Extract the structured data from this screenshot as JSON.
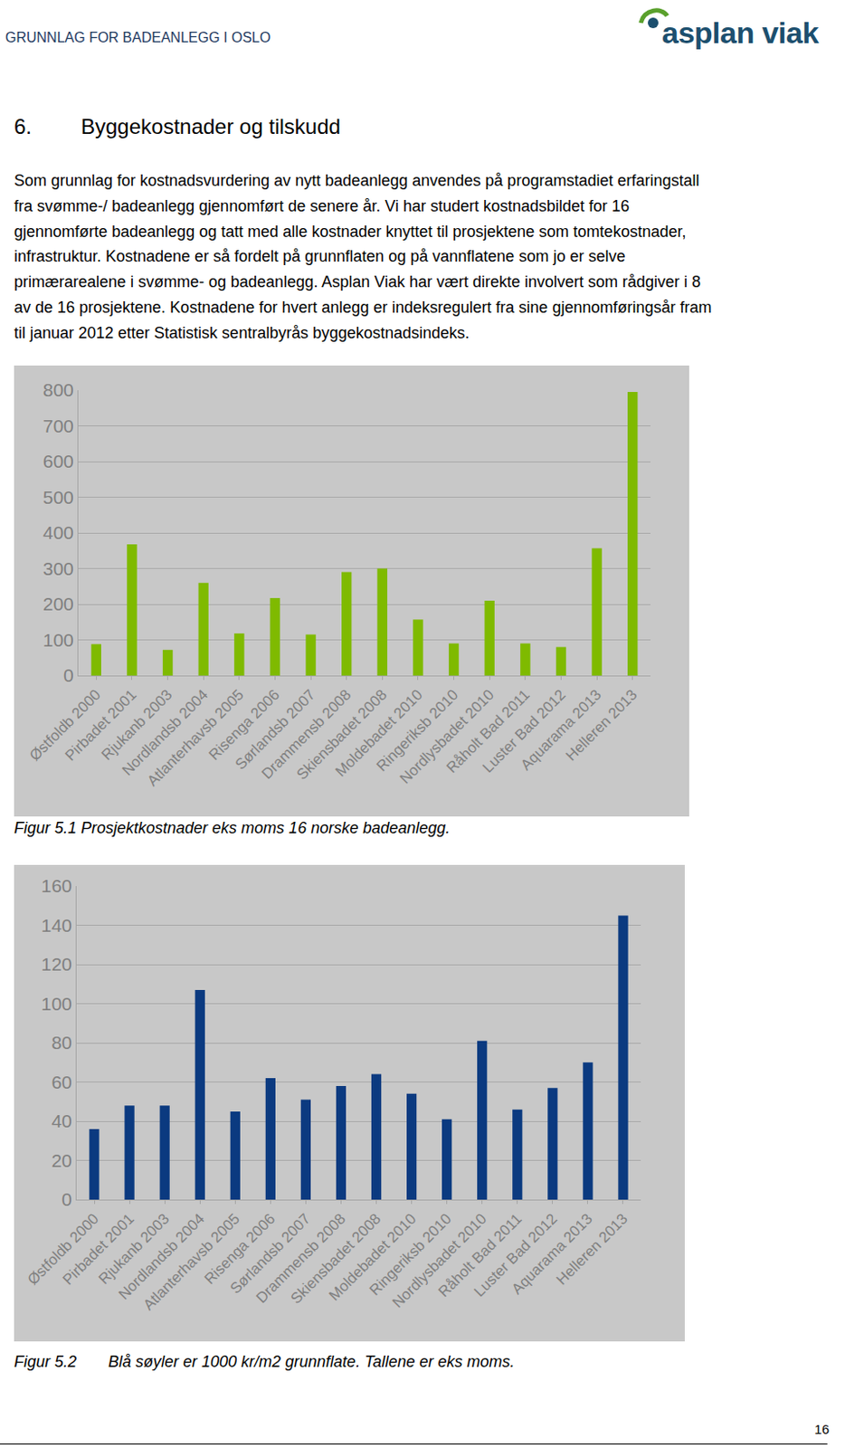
{
  "header": {
    "title": "GRUNNLAG FOR BADEANLEGG I OSLO",
    "logo": "asplan viak"
  },
  "heading": {
    "number": "6.",
    "text": "Byggekostnader og tilskudd"
  },
  "paragraph": [
    "Som grunnlag for kostnadsvurdering av nytt badeanlegg anvendes på programstadiet erfaringstall",
    "fra svømme-/ badeanlegg gjennomført de senere år. Vi har studert kostnadsbildet for 16",
    "gjennomførte badeanlegg og tatt med alle kostnader knyttet til prosjektene som tomtekostnader,",
    "infrastruktur. Kostnadene er så fordelt på grunnflaten og på vannflatene som jo er selve",
    "primærarealene i svømme- og badeanlegg. Asplan Viak har vært direkte involvert som rådgiver i 8",
    "av de 16 prosjektene. Kostnadene for hvert anlegg er indeksregulert fra sine gjennomføringsår fram",
    "til januar 2012 etter Statistisk sentralbyrås byggekostnadsindeks."
  ],
  "chart_data": [
    {
      "type": "bar",
      "caption": "Figur 5.1 Prosjektkostnader eks moms 16 norske badeanlegg.",
      "categories": [
        "Østfoldb 2000",
        "Pirbadet 2001",
        "Rjukanb 2003",
        "Nordlandsb 2004",
        "Atlanterhavsb 2005",
        "Risenga 2006",
        "Sørlandsb 2007",
        "Drammensb 2008",
        "Skiensbadet 2008",
        "Moldebadet 2010",
        "Ringeriksb 2010",
        "Nordlysbadet 2010",
        "Råholt Bad 2011",
        "Luster Bad 2012",
        "Aquarama 2013",
        "Helleren 2013"
      ],
      "values": [
        88,
        368,
        72,
        260,
        118,
        217,
        115,
        290,
        300,
        157,
        90,
        210,
        90,
        80,
        357,
        795
      ],
      "color": "#7fba00",
      "ylim": [
        0,
        800
      ],
      "yticks": [
        0,
        100,
        200,
        300,
        400,
        500,
        600,
        700,
        800
      ],
      "grid": true
    },
    {
      "type": "bar",
      "caption_label": "Figur 5.2",
      "caption": "Blå søyler er 1000 kr/m2 grunnflate.  Tallene er eks moms.",
      "categories": [
        "Østfoldb 2000",
        "Pirbadet 2001",
        "Rjukanb 2003",
        "Nordlandsb 2004",
        "Atlanterhavsb 2005",
        "Risenga 2006",
        "Sørlandsb 2007",
        "Drammensb 2008",
        "Skiensbadet 2008",
        "Moldebadet 2010",
        "Ringeriksb 2010",
        "Nordlysbadet 2010",
        "Råholt Bad 2011",
        "Luster Bad 2012",
        "Aquarama 2013",
        "Helleren 2013"
      ],
      "values": [
        36,
        48,
        48,
        107,
        45,
        62,
        51,
        58,
        64,
        54,
        41,
        81,
        46,
        57,
        70,
        145
      ],
      "color": "#0b3a80",
      "ylim": [
        0,
        160
      ],
      "yticks": [
        0,
        20,
        40,
        60,
        80,
        100,
        120,
        140,
        160
      ],
      "grid": true
    }
  ],
  "page_number": "16"
}
